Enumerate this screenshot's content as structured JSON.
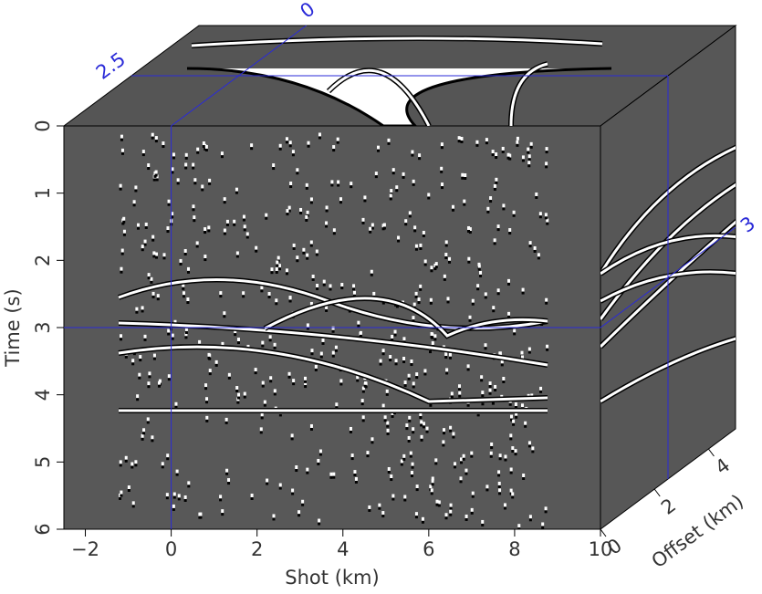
{
  "chart_data": {
    "type": "cube",
    "x_label": "Shot (km)",
    "y_label": "Time (s)",
    "z_label": "Offset (km)",
    "xlim": [
      -2.5,
      10
    ],
    "ylim": [
      0,
      6
    ],
    "zlim": [
      0,
      5
    ],
    "xticks": [
      {
        "value": -2,
        "label": "−2"
      },
      0,
      2,
      4,
      6,
      8,
      10
    ],
    "yticks": [
      0,
      1,
      2,
      3,
      4,
      5,
      6
    ],
    "zticks": [
      0,
      2,
      4
    ],
    "slices": {
      "shot": 0,
      "time": 3,
      "offset": 2.5
    },
    "slice_color": "#2a2ad8"
  }
}
